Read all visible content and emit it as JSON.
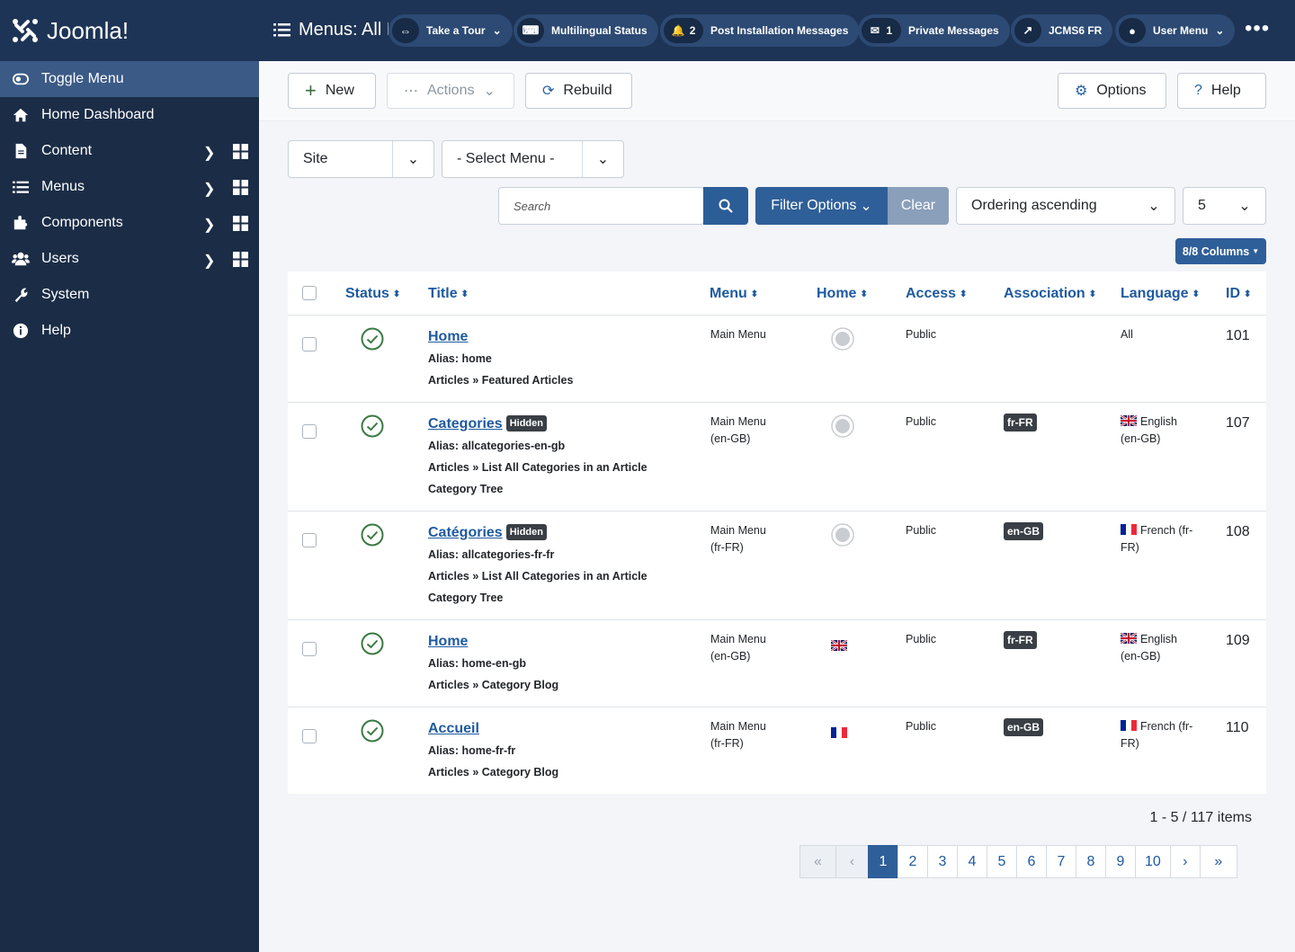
{
  "sidebar": {
    "logo": "Joomla!",
    "items": [
      "Toggle Menu",
      "Home Dashboard",
      "Content",
      "Menus",
      "Components",
      "Users",
      "System",
      "Help"
    ]
  },
  "header": {
    "title": "Menus: All Menu Items",
    "tour": "Take a Tour",
    "multilingual": "Multilingual Status",
    "post_count": 2,
    "post": "Post Installation Messages",
    "message_count": 1,
    "messages": "Private Messages",
    "site": "JCMS6 FR",
    "user": "User Menu"
  },
  "toolbar": {
    "new": "New",
    "actions": "Actions",
    "rebuild": "Rebuild",
    "options": "Options",
    "help": "Help"
  },
  "filters": {
    "client": "Site",
    "menu": "- Select Menu -",
    "search_placeholder": "Search",
    "filter_options": "Filter Options",
    "clear": "Clear",
    "ordering": "Ordering ascending",
    "limit": 5,
    "columns": "8/8 Columns"
  },
  "table": {
    "columns": [
      "Status",
      "Title",
      "Menu",
      "Home",
      "Access",
      "Association",
      "Language",
      "ID"
    ],
    "rows": [
      {
        "title": "Home",
        "alias": "Alias: home",
        "type": "Articles » Featured Articles",
        "menu": "Main Menu",
        "access": "Public",
        "language": "All",
        "id": 101
      },
      {
        "title": "Categories",
        "badge": "Hidden",
        "alias": "Alias: allcategories-en-gb",
        "type": "Articles » List All Categories in an Article Category Tree",
        "menu": "Main Menu (en-GB)",
        "access": "Public",
        "association": "fr-FR",
        "language": "English (en-GB)",
        "id": 107
      },
      {
        "title": "Catégories",
        "badge": "Hidden",
        "alias": "Alias: allcategories-fr-fr",
        "type": "Articles » List All Categories in an Article Category Tree",
        "menu": "Main Menu (fr-FR)",
        "access": "Public",
        "association": "en-GB",
        "language": "French (fr-FR)",
        "id": 108
      },
      {
        "title": "Home",
        "alias": "Alias: home-en-gb",
        "type": "Articles » Category Blog",
        "menu": "Main Menu (en-GB)",
        "access": "Public",
        "association": "fr-FR",
        "language": "English (en-GB)",
        "id": 109
      },
      {
        "title": "Accueil",
        "alias": "Alias: home-fr-fr",
        "type": "Articles » Category Blog",
        "menu": "Main Menu (fr-FR)",
        "access": "Public",
        "association": "en-GB",
        "language": "French (fr-FR)",
        "id": 110
      }
    ]
  },
  "pagination": {
    "summary": "1 - 5 / 117 items",
    "pages": [
      1,
      2,
      3,
      4,
      5,
      6,
      7,
      8,
      9,
      10
    ]
  }
}
